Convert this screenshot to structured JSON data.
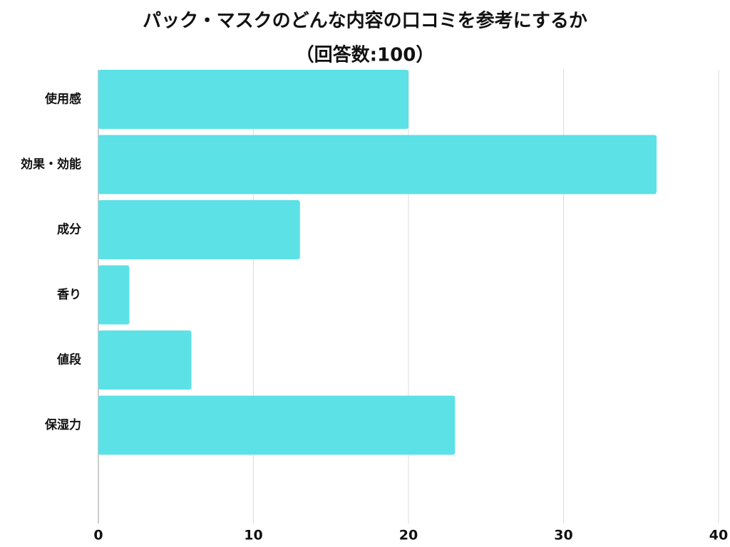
{
  "chart_data": {
    "type": "bar",
    "orientation": "horizontal",
    "title": "パック・マスクのどんな内容の口コミを参考にするか",
    "subtitle": "（回答数:100）",
    "categories": [
      "使用感",
      "効果・効能",
      "成分",
      "香り",
      "値段",
      "保湿力"
    ],
    "values": [
      20,
      36,
      13,
      2,
      6,
      23
    ],
    "color": "#5ce1e6",
    "xlim": [
      0,
      40
    ],
    "xticks": [
      0,
      10,
      20,
      30,
      40
    ],
    "grid": true
  }
}
